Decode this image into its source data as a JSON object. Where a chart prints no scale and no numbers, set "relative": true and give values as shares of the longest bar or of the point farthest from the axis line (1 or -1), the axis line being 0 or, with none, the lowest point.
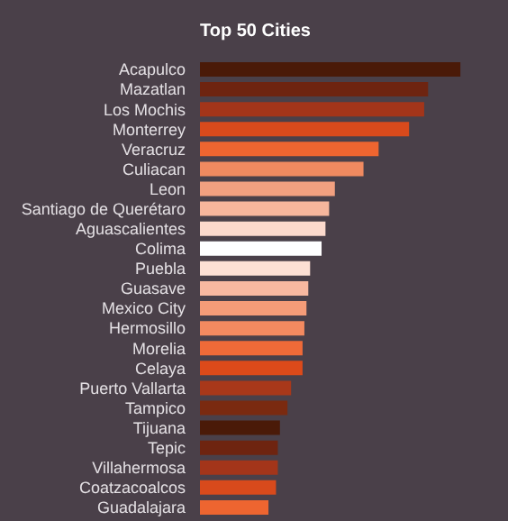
{
  "chart_data": {
    "type": "bar",
    "orientation": "horizontal",
    "relative": true,
    "title": "Top 50 Cities",
    "categories": [
      "Acapulco",
      "Mazatlan",
      "Los Mochis",
      "Monterrey",
      "Veracruz",
      "Culiacan",
      "Leon",
      "Santiago de Querétaro",
      "Aguascalientes",
      "Colima",
      "Puebla",
      "Guasave",
      "Mexico City",
      "Hermosillo",
      "Morelia",
      "Celaya",
      "Puerto Vallarta",
      "Tampico",
      "Tijuana",
      "Tepic",
      "Villahermosa",
      "Coatzacoalcos",
      "Guadalajara"
    ],
    "values": [
      1,
      0.876,
      0.861,
      0.803,
      0.686,
      0.628,
      0.518,
      0.496,
      0.482,
      0.467,
      0.423,
      0.416,
      0.409,
      0.401,
      0.394,
      0.394,
      0.35,
      0.336,
      0.307,
      0.299,
      0.299,
      0.292,
      0.263
    ],
    "colors": [
      "#4a1a08",
      "#6e2410",
      "#a3351a",
      "#d84a1c",
      "#ee6530",
      "#f08a60",
      "#f2a080",
      "#f6b69c",
      "#fbd9cc",
      "#ffffff",
      "#fde0d4",
      "#f8b8a0",
      "#f59c78",
      "#f38a60",
      "#ef6a38",
      "#dc4a1a",
      "#a8381a",
      "#7a2a10",
      "#4a1a08",
      "#6e2410",
      "#a3351a",
      "#d84a1c",
      "#ee6530"
    ]
  }
}
